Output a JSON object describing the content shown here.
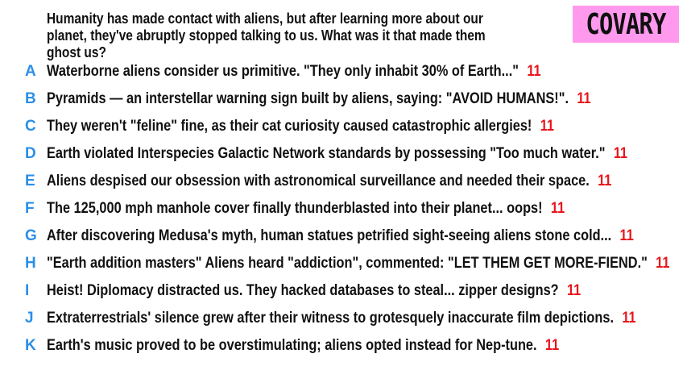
{
  "prompt": "Humanity has made contact with aliens, but after learning more about our planet, they've abruptly stopped talking to us. What was it that made them ghost us?",
  "logo": {
    "text": "COVARY",
    "color": "#ff99ee"
  },
  "colors": {
    "letter": "#2b8fe8",
    "score": "#e8141b"
  },
  "answers": [
    {
      "letter": "A",
      "text": "Waterborne aliens consider us primitive. \"They only inhabit 30% of Earth...\"",
      "score": "11"
    },
    {
      "letter": "B",
      "text": "Pyramids — an interstellar warning sign built by aliens, saying: \"AVOID HUMANS!\".",
      "score": "11"
    },
    {
      "letter": "C",
      "text": "They weren't \"feline\" fine, as their cat curiosity caused catastrophic allergies!",
      "score": "11"
    },
    {
      "letter": "D",
      "text": "Earth violated Interspecies Galactic Network standards by possessing \"Too much water.\"",
      "score": "11"
    },
    {
      "letter": "E",
      "text": "Aliens despised our obsession with astronomical surveillance and needed their space.",
      "score": "11"
    },
    {
      "letter": "F",
      "text": "The 125,000 mph manhole cover finally thunderblasted into their planet... oops!",
      "score": "11"
    },
    {
      "letter": "G",
      "text": "After discovering Medusa's myth, human statues petrified sight-seeing aliens stone cold...",
      "score": "11"
    },
    {
      "letter": "H",
      "text": "\"Earth addition masters\" Aliens heard \"addiction\", commented: \"LET THEM GET MORE-FIEND.\"",
      "score": "11"
    },
    {
      "letter": "I",
      "text": "Heist! Diplomacy distracted us. They hacked databases to steal... zipper designs?",
      "score": "11"
    },
    {
      "letter": "J",
      "text": "Extraterrestrials' silence grew after their witness to grotesquely inaccurate film depictions.",
      "score": "11"
    },
    {
      "letter": "K",
      "text": "Earth's music proved to be overstimulating; aliens opted instead for Nep-tune.",
      "score": "11"
    }
  ]
}
